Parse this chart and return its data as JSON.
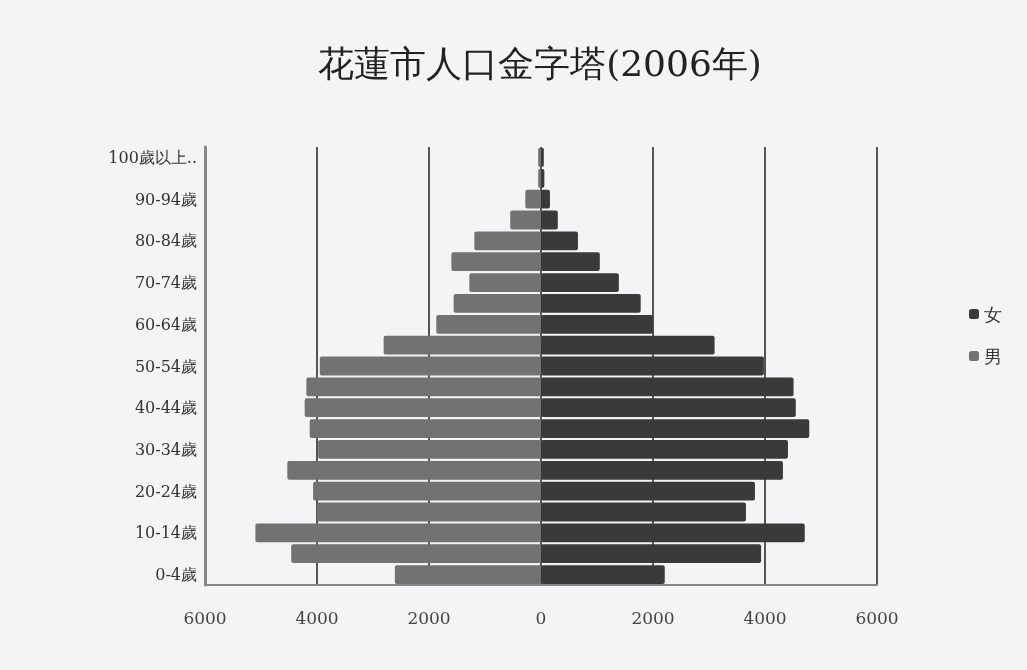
{
  "chart_data": {
    "type": "bar",
    "orientation": "horizontal",
    "title": "花蓮市人口金字塔(2006年)",
    "categories": [
      "100歲以上..",
      null,
      "90-94歲",
      null,
      "80-84歲",
      null,
      "70-74歲",
      null,
      "60-64歲",
      null,
      "50-54歲",
      null,
      "40-44歲",
      null,
      "30-34歲",
      null,
      "20-24歲",
      null,
      "10-14歲",
      null,
      "0-4歲"
    ],
    "series": [
      {
        "name": "女",
        "color": "#3a3a3a",
        "values": [
          50,
          60,
          160,
          300,
          660,
          1050,
          1390,
          1780,
          2000,
          3100,
          3980,
          4510,
          4550,
          4790,
          4410,
          4320,
          3820,
          3660,
          4710,
          3930,
          2210
        ]
      },
      {
        "name": "男",
        "color": "#727272",
        "values": [
          -50,
          -50,
          -280,
          -550,
          -1190,
          -1600,
          -1280,
          -1560,
          -1870,
          -2810,
          -3950,
          -4190,
          -4220,
          -4130,
          -3980,
          -4530,
          -4070,
          -4000,
          -5100,
          -4460,
          -2610
        ]
      }
    ],
    "xlim": [
      -6000,
      6000
    ],
    "xticks": [
      {
        "value": -6000,
        "label": "6000"
      },
      {
        "value": -4000,
        "label": "4000"
      },
      {
        "value": -2000,
        "label": "2000"
      },
      0,
      2000,
      4000,
      6000
    ],
    "stacked": true,
    "grid": "x",
    "legend": "right"
  }
}
